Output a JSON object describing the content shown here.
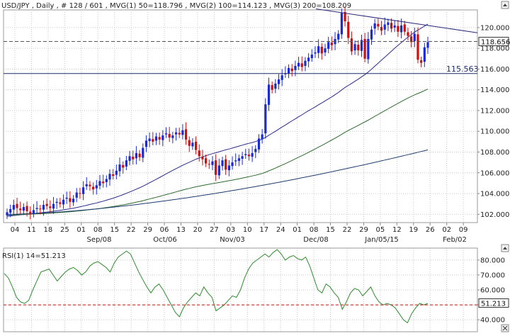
{
  "header": {
    "symbol": "USD/JPY",
    "interval": "Daily",
    "bars": "# 128 / 601",
    "mvg1": "MVG(1) 50=118.796",
    "mvg2": "MVG(2) 100=114.123",
    "mvg3": "MVG(3) 200=108.209"
  },
  "rsi_header": "RSI(1) 14=51.213",
  "colors": {
    "bullish": "#1a2bd6",
    "bearish": "#cc1010",
    "ma50": "#2a2a8a",
    "ma100": "#2e6b2e",
    "ma200": "#1e3c6e",
    "trendline": "#2a2a7a",
    "hline": "#1e2a6e",
    "rsi_line": "#2e8b2e",
    "rsi_ref": "#cc1010",
    "grid": "#c8c8c8",
    "axis_text": "#222222"
  },
  "chart_data": [
    {
      "type": "candlestick",
      "x_tick_labels": [
        "04",
        "11",
        "18",
        "25",
        "01",
        "08",
        "15",
        "22",
        "29",
        "06",
        "13",
        "20",
        "27",
        "03",
        "10",
        "17",
        "24",
        "01",
        "08",
        "15",
        "22",
        "29",
        "05",
        "12",
        "19",
        "26",
        "02",
        "09"
      ],
      "x_month_labels": [
        "Sep/08",
        "Oct/06",
        "Nov/03",
        "Dec/08",
        "Jan/05/15",
        "Feb/02"
      ],
      "y_ticks": [
        102,
        104,
        106,
        108,
        110,
        112,
        114,
        116,
        118,
        120
      ],
      "y_tick_labels": [
        "102.000",
        "104.000",
        "106.000",
        "108.000",
        "110.000",
        "112.000",
        "114.000",
        "116.000",
        "118.000",
        "120.000"
      ],
      "ylim": [
        101.2,
        121.7
      ],
      "last_price_label": "118.656",
      "last_price": 118.656,
      "horizontal_line": {
        "label": "115.563",
        "value": 115.563
      },
      "trendline": {
        "start": {
          "date": "Dec/08",
          "value": 121.8
        },
        "end": {
          "date": "Feb/09",
          "value": 119.5
        }
      },
      "moving_averages": [
        {
          "name": "MVG(1) 50",
          "last": 118.796
        },
        {
          "name": "MVG(2) 100",
          "last": 114.123
        },
        {
          "name": "MVG(3) 200",
          "last": 108.209
        }
      ],
      "ohlc_close": [
        102.2,
        102.5,
        102.9,
        102.6,
        102.4,
        102.7,
        102.3,
        102.1,
        102.4,
        102.6,
        102.5,
        102.9,
        102.8,
        102.6,
        103.0,
        103.2,
        103.0,
        103.4,
        103.6,
        103.2,
        103.5,
        104.1,
        104.0,
        104.6,
        104.9,
        104.7,
        104.4,
        104.8,
        105.2,
        105.0,
        105.4,
        105.9,
        105.7,
        106.2,
        106.8,
        106.5,
        107.2,
        107.6,
        107.3,
        107.9,
        107.5,
        108.4,
        109.1,
        109.3,
        109.0,
        109.5,
        109.2,
        109.6,
        109.8,
        109.4,
        109.6,
        109.9,
        109.7,
        110.1,
        109.2,
        108.6,
        108.9,
        108.2,
        107.6,
        107.3,
        106.9,
        106.8,
        107.1,
        105.8,
        106.7,
        107.2,
        106.3,
        106.7,
        107.0,
        107.2,
        107.4,
        107.6,
        107.8,
        107.6,
        107.9,
        108.3,
        109.3,
        109.7,
        112.6,
        114.5,
        114.0,
        114.6,
        115.0,
        115.4,
        115.6,
        116.1,
        115.8,
        116.3,
        116.6,
        116.2,
        116.8,
        117.1,
        117.4,
        117.6,
        118.2,
        117.5,
        118.0,
        118.6,
        118.3,
        118.9,
        119.4,
        121.4,
        120.6,
        119.0,
        117.7,
        118.4,
        117.8,
        118.8,
        117.0,
        118.9,
        119.8,
        120.4,
        120.1,
        119.7,
        120.3,
        120.5,
        119.9,
        120.2,
        119.6,
        120.2,
        119.6,
        119.2,
        118.6,
        119.4,
        116.9,
        116.6,
        118.1,
        118.6
      ]
    },
    {
      "type": "line",
      "name": "RSI(1) 14",
      "last": 51.213,
      "y_ticks": [
        40,
        50,
        60,
        70,
        80
      ],
      "y_tick_labels": [
        "40.000",
        "50.000",
        "60.000",
        "70.000",
        "80.000"
      ],
      "ylim": [
        32,
        88
      ],
      "reference_line": 50,
      "values": [
        71,
        68,
        62,
        55,
        52,
        51,
        53,
        60,
        66,
        72,
        73,
        74,
        70,
        66,
        69,
        72,
        74,
        75,
        73,
        70,
        72,
        76,
        78,
        79,
        77,
        75,
        72,
        78,
        82,
        84,
        86,
        84,
        78,
        72,
        67,
        62,
        58,
        62,
        64,
        60,
        55,
        50,
        45,
        42,
        48,
        52,
        55,
        58,
        56,
        62,
        58,
        55,
        46,
        48,
        50,
        53,
        56,
        55,
        60,
        68,
        74,
        78,
        80,
        82,
        84,
        82,
        85,
        87,
        84,
        80,
        82,
        83,
        81,
        80,
        82,
        76,
        68,
        60,
        58,
        64,
        62,
        58,
        55,
        47,
        52,
        58,
        61,
        60,
        56,
        59,
        62,
        56,
        52,
        50,
        51,
        50,
        48,
        44,
        40,
        38,
        44,
        48,
        51,
        50,
        51
      ]
    }
  ]
}
